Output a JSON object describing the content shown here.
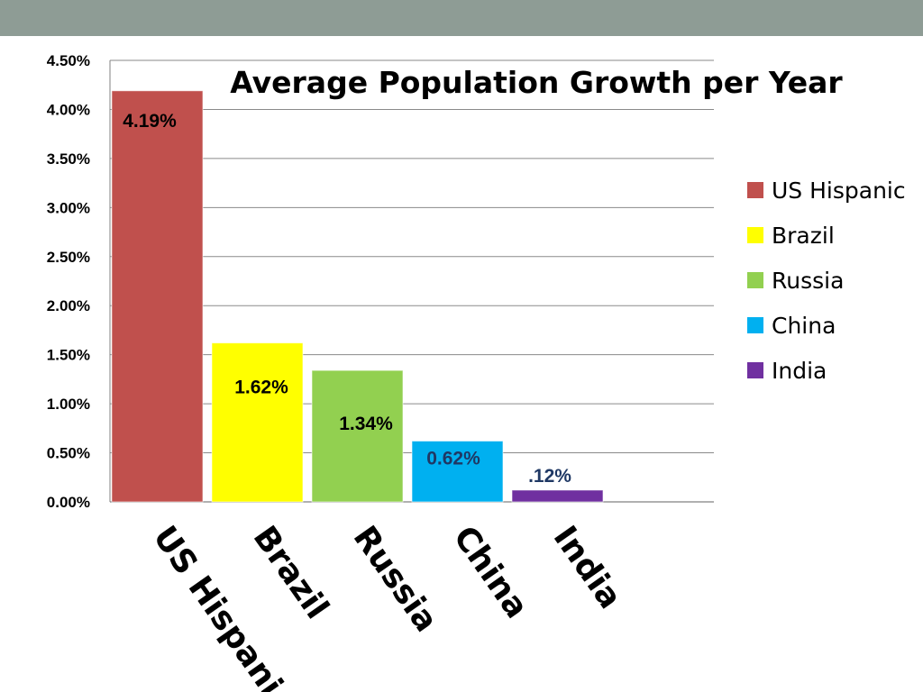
{
  "chart_data": {
    "type": "bar",
    "title": "Average Population Growth per Year",
    "xlabel": "",
    "ylabel": "",
    "ylim": [
      0,
      0.045
    ],
    "ytick_step": 0.005,
    "ytick_labels": [
      "0.00%",
      "0.50%",
      "1.00%",
      "1.50%",
      "2.00%",
      "2.50%",
      "3.00%",
      "3.50%",
      "4.00%",
      "4.50%"
    ],
    "categories": [
      "US Hispanic",
      "Brazil",
      "Russia",
      "China",
      "India"
    ],
    "values": [
      0.0419,
      0.0162,
      0.0134,
      0.0062,
      0.0012
    ],
    "data_labels": [
      "4.19%",
      "1.62%",
      "1.34%",
      "0.62%",
      ".12%"
    ],
    "colors": [
      "#c0504d",
      "#ffff00",
      "#92d050",
      "#00b0f0",
      "#7030a0"
    ],
    "data_label_colors": [
      "#000000",
      "#000000",
      "#000000",
      "#1f3864",
      "#1f3864"
    ],
    "legend": {
      "position": "right",
      "entries": [
        "US Hispanic",
        "Brazil",
        "Russia",
        "China",
        "India"
      ]
    },
    "grid": true
  }
}
